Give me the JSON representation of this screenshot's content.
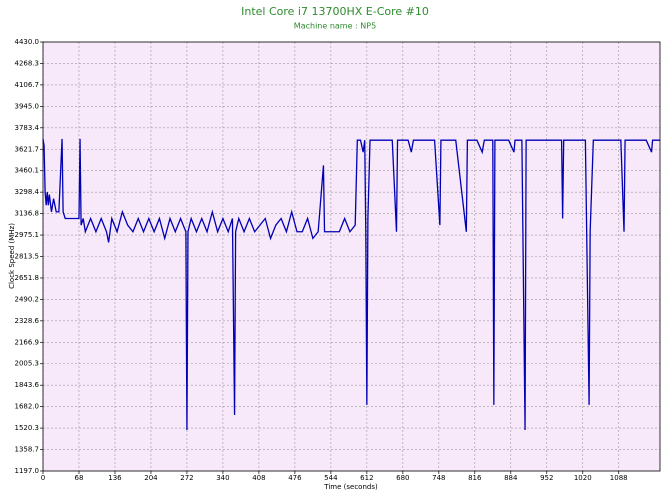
{
  "chart_data": {
    "type": "line",
    "title": "Intel Core i7 13700HX E-Core #10",
    "subtitle": "Machine name : NP5",
    "x_label": "Time (seconds)",
    "y_label": "Clock Speed (MHz)",
    "xlim": [
      0,
      1166
    ],
    "ylim": [
      1197,
      4430
    ],
    "xticks": [
      0,
      68,
      136,
      204,
      272,
      340,
      408,
      476,
      544,
      612,
      680,
      748,
      816,
      884,
      952,
      1020,
      1088
    ],
    "yticks": [
      {
        "value": 1197,
        "label": "1197.0"
      },
      1358.7,
      1520.3,
      {
        "value": 1682,
        "label": "1682.0"
      },
      1843.6,
      2005.3,
      2166.9,
      2328.6,
      2490.2,
      2651.8,
      2813.5,
      2975.1,
      3136.8,
      3298.4,
      3460.1,
      3621.7,
      3783.4,
      {
        "value": 3945,
        "label": "3945.0"
      },
      4106.7,
      4268.3,
      {
        "value": 4430,
        "label": "4430.0"
      }
    ],
    "grid": true,
    "background": "#f7e8fa",
    "series": [
      {
        "name": "E-Core #10",
        "color": "#0000b4",
        "x": [
          0,
          2,
          4,
          6,
          8,
          10,
          12,
          16,
          20,
          25,
          30,
          36,
          38,
          42,
          50,
          60,
          68,
          70,
          72,
          76,
          80,
          90,
          100,
          110,
          120,
          124,
          130,
          140,
          150,
          160,
          170,
          180,
          190,
          200,
          210,
          220,
          230,
          240,
          250,
          260,
          270,
          272,
          274,
          280,
          290,
          300,
          310,
          320,
          330,
          340,
          350,
          358,
          362,
          364,
          370,
          380,
          390,
          400,
          410,
          420,
          430,
          440,
          450,
          460,
          470,
          480,
          490,
          500,
          510,
          520,
          530,
          532,
          540,
          550,
          560,
          570,
          580,
          590,
          594,
          600,
          605,
          608,
          610,
          612,
          614,
          618,
          640,
          660,
          668,
          670,
          690,
          696,
          700,
          740,
          750,
          752,
          780,
          800,
          802,
          820,
          830,
          834,
          850,
          852,
          854,
          880,
          890,
          892,
          905,
          911,
          913,
          940,
          980,
          982,
          984,
          1025,
          1032,
          1034,
          1040,
          1080,
          1092,
          1098,
          1100,
          1140,
          1150,
          1152,
          1166
        ],
        "values": [
          3700,
          3650,
          3300,
          3200,
          3300,
          3200,
          3280,
          3150,
          3250,
          3150,
          3150,
          3700,
          3150,
          3100,
          3100,
          3100,
          3100,
          3700,
          3050,
          3100,
          3000,
          3100,
          3000,
          3100,
          3000,
          2920,
          3100,
          3000,
          3150,
          3050,
          3000,
          3100,
          3000,
          3100,
          3000,
          3100,
          2950,
          3100,
          3000,
          3100,
          3000,
          1506,
          3000,
          3100,
          3000,
          3100,
          3000,
          3150,
          3000,
          3100,
          3000,
          3100,
          1619,
          3000,
          3100,
          3000,
          3100,
          3000,
          3050,
          3100,
          2950,
          3050,
          3100,
          3000,
          3150,
          3000,
          3000,
          3100,
          2950,
          3000,
          3500,
          3000,
          3000,
          3000,
          3000,
          3100,
          3000,
          3050,
          3690,
          3690,
          3600,
          3690,
          3000,
          1695,
          3100,
          3690,
          3690,
          3690,
          3000,
          3690,
          3690,
          3600,
          3690,
          3690,
          3050,
          3690,
          3690,
          3000,
          3690,
          3690,
          3600,
          3690,
          3690,
          1695,
          3690,
          3690,
          3600,
          3690,
          3690,
          1506,
          3690,
          3690,
          3690,
          3100,
          3690,
          3690,
          1695,
          3000,
          3690,
          3690,
          3690,
          3000,
          3690,
          3690,
          3600,
          3690,
          3690
        ]
      }
    ]
  }
}
